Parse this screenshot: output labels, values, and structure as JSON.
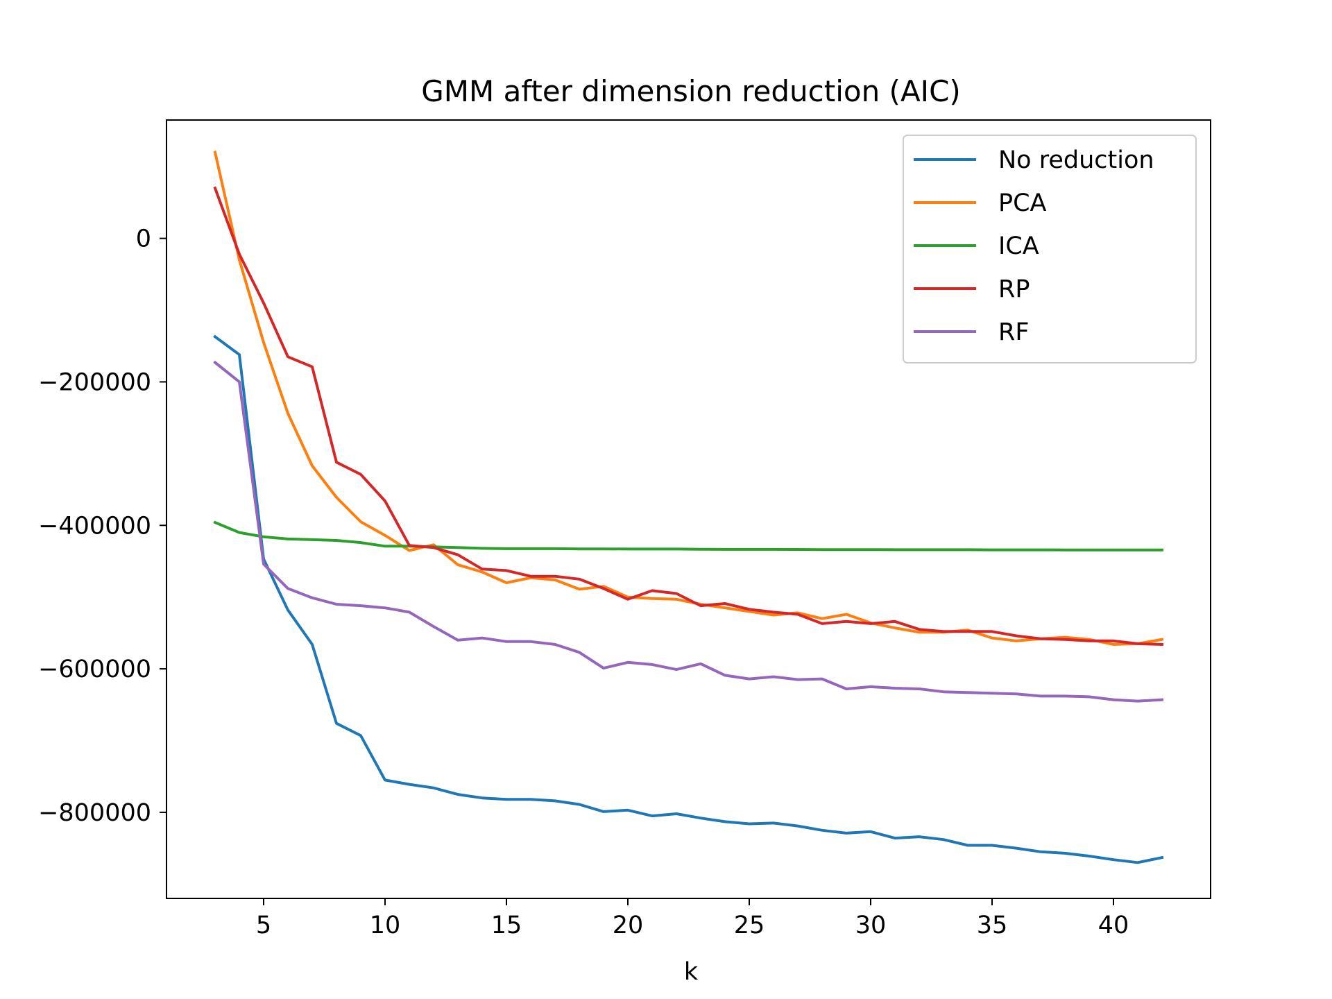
{
  "chart_data": {
    "type": "line",
    "title": "GMM after dimension reduction (AIC)",
    "xlabel": "k",
    "ylabel": "",
    "xlim": [
      1,
      44
    ],
    "ylim": [
      -920000,
      165000
    ],
    "xticks": [
      5,
      10,
      15,
      20,
      25,
      30,
      35,
      40
    ],
    "yticks": [
      0,
      -200000,
      -400000,
      -600000,
      -800000
    ],
    "ytick_labels": [
      "0",
      "−200000",
      "−400000",
      "−600000",
      "−800000"
    ],
    "grid": false,
    "legend_position": "top-right",
    "x": [
      3,
      4,
      5,
      6,
      7,
      8,
      9,
      10,
      11,
      12,
      13,
      14,
      15,
      16,
      17,
      18,
      19,
      20,
      21,
      22,
      23,
      24,
      25,
      26,
      27,
      28,
      29,
      30,
      31,
      32,
      33,
      34,
      35,
      36,
      37,
      38,
      39,
      40,
      41,
      42
    ],
    "series": [
      {
        "name": "No reduction",
        "color": "#1f77b4",
        "values": [
          -137000,
          -162000,
          -447000,
          -518000,
          -566000,
          -676000,
          -693000,
          -755000,
          -761000,
          -766000,
          -775000,
          -780000,
          -782000,
          -782000,
          -784000,
          -789000,
          -799000,
          -797000,
          -805000,
          -802000,
          -808000,
          -813000,
          -816000,
          -815000,
          -819000,
          -825000,
          -829000,
          -827000,
          -836000,
          -834000,
          -838000,
          -846000,
          -846000,
          -850000,
          -855000,
          -857000,
          -861000,
          -866000,
          -870000,
          -863000
        ]
      },
      {
        "name": "PCA",
        "color": "#ff7f0e",
        "values": [
          120000,
          -30000,
          -145000,
          -244000,
          -317000,
          -361000,
          -395000,
          -414000,
          -435000,
          -427000,
          -455000,
          -465000,
          -480000,
          -473000,
          -476000,
          -489000,
          -485000,
          -500000,
          -502000,
          -503000,
          -510000,
          -515000,
          -520000,
          -525000,
          -522000,
          -530000,
          -524000,
          -536000,
          -543000,
          -549000,
          -549000,
          -546000,
          -557000,
          -561000,
          -558000,
          -556000,
          -559000,
          -566000,
          -565000,
          -559000
        ]
      },
      {
        "name": "ICA",
        "color": "#2ca02c",
        "values": [
          -396000,
          -410000,
          -416000,
          -419000,
          -420000,
          -421000,
          -424000,
          -429000,
          -429000,
          -430000,
          -431000,
          -432000,
          -432500,
          -432500,
          -432500,
          -432800,
          -432800,
          -433000,
          -433000,
          -433000,
          -433300,
          -433500,
          -433500,
          -433500,
          -433600,
          -433800,
          -433800,
          -433800,
          -434000,
          -434000,
          -434000,
          -434000,
          -434200,
          -434200,
          -434200,
          -434300,
          -434300,
          -434300,
          -434400,
          -434400
        ]
      },
      {
        "name": "RP",
        "color": "#d62728",
        "values": [
          70000,
          -22000,
          -90000,
          -165000,
          -179000,
          -312000,
          -329000,
          -366000,
          -428000,
          -431000,
          -441000,
          -461000,
          -463000,
          -471000,
          -471000,
          -475000,
          -488000,
          -503000,
          -491000,
          -495000,
          -512000,
          -509000,
          -517000,
          -521000,
          -524000,
          -537000,
          -534000,
          -537000,
          -534000,
          -545000,
          -548000,
          -548000,
          -548000,
          -554000,
          -558000,
          -559000,
          -561000,
          -561000,
          -565000,
          -566000
        ]
      },
      {
        "name": "RF",
        "color": "#9467bd",
        "values": [
          -173000,
          -200000,
          -454000,
          -488000,
          -501000,
          -510000,
          -512000,
          -515000,
          -521000,
          -541000,
          -560000,
          -557000,
          -562000,
          -562000,
          -566000,
          -577000,
          -599000,
          -591000,
          -594000,
          -601000,
          -593000,
          -609000,
          -614000,
          -611000,
          -615000,
          -614000,
          -628000,
          -625000,
          -627000,
          -628000,
          -632000,
          -633000,
          -634000,
          -635000,
          -638000,
          -638000,
          -639000,
          -643000,
          -645000,
          -643000
        ]
      }
    ]
  }
}
